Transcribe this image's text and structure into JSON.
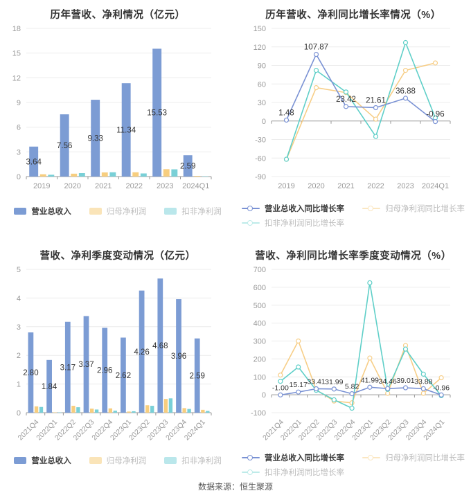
{
  "footer": {
    "source": "数据来源：恒生聚源"
  },
  "colors": {
    "blue": "#7C9CD4",
    "yellow": "#F7CE7F",
    "teal": "#6ACFCC",
    "axis_text": "#999999",
    "grid_line": "#ECECEC",
    "axis_line": "#999999",
    "data_label": "#333333",
    "title_text": "#333333"
  },
  "chart_data": [
    {
      "type": "bar",
      "title": "历年营收、净利情况（亿元）",
      "categories": [
        "2019",
        "2020",
        "2021",
        "2022",
        "2023",
        "2024Q1"
      ],
      "ylim": [
        0,
        18
      ],
      "yticks": [
        0,
        3,
        6,
        9,
        12,
        15,
        18
      ],
      "rotate_xlabels": false,
      "legend_position": "bottom",
      "grid": true,
      "series": [
        {
          "name": "营业总收入",
          "color": "#7C9CD4",
          "legend_color": "#7C9CD4",
          "labeled": true,
          "values": [
            3.64,
            7.56,
            9.33,
            11.34,
            15.53,
            2.59
          ]
        },
        {
          "name": "归母净利润",
          "color": "#F7CE7F",
          "legend_color": "#FAE4B8",
          "labeled": false,
          "values": [
            0.28,
            0.35,
            0.5,
            0.52,
            0.9,
            0.08
          ]
        },
        {
          "name": "扣非净利润",
          "color": "#79D0D7",
          "legend_color": "#BAE7EB",
          "labeled": false,
          "values": [
            0.22,
            0.42,
            0.52,
            0.38,
            0.88,
            0.04
          ]
        }
      ]
    },
    {
      "type": "line",
      "title": "历年营收、净利同比增长率情况（%）",
      "categories": [
        "2019",
        "2020",
        "2021",
        "2022",
        "2023",
        "2024Q1"
      ],
      "ylim": [
        -90,
        150
      ],
      "yticks": [
        -90,
        -60,
        -30,
        0,
        30,
        60,
        90,
        120,
        150
      ],
      "rotate_xlabels": false,
      "legend_position": "bottom",
      "grid": true,
      "series": [
        {
          "name": "营业总收入同比增长率",
          "color": "#7A92D4",
          "legend_color": "#7A92D4",
          "labeled": true,
          "values": [
            1.48,
            107.87,
            23.42,
            21.61,
            36.88,
            -0.96
          ]
        },
        {
          "name": "归母净利润同比增长率",
          "color": "#F7CE87",
          "legend_color": "#FBE7C2",
          "labeled": false,
          "values": [
            -62,
            54,
            46,
            3,
            82,
            94
          ]
        },
        {
          "name": "扣非净利润同比增长率",
          "color": "#5FCFC8",
          "legend_color": "#BEEBE9",
          "labeled": false,
          "values": [
            -62,
            82,
            47,
            -25,
            127,
            5
          ]
        }
      ]
    },
    {
      "type": "bar",
      "title": "营收、净利季度变动情况（亿元）",
      "categories": [
        "2021Q4",
        "2022Q1",
        "2022Q2",
        "2022Q3",
        "2022Q4",
        "2023Q1",
        "2023Q2",
        "2023Q3",
        "2023Q4",
        "2024Q1"
      ],
      "ylim": [
        0,
        5
      ],
      "yticks": [
        0,
        1,
        2,
        3,
        4,
        5
      ],
      "rotate_xlabels": true,
      "legend_position": "bottom",
      "grid": true,
      "series": [
        {
          "name": "营业总收入",
          "color": "#7C9CD4",
          "legend_color": "#7C9CD4",
          "labeled": true,
          "values": [
            2.8,
            1.84,
            3.17,
            3.37,
            2.96,
            2.62,
            4.26,
            4.68,
            3.96,
            2.59
          ]
        },
        {
          "name": "归母净利润",
          "color": "#F7CE7F",
          "legend_color": "#FAE4B8",
          "labeled": false,
          "values": [
            0.22,
            0.01,
            0.24,
            0.14,
            0.15,
            0.04,
            0.26,
            0.48,
            0.16,
            0.1
          ]
        },
        {
          "name": "扣非净利润",
          "color": "#79D0D7",
          "legend_color": "#BAE7EB",
          "labeled": false,
          "values": [
            0.2,
            0.01,
            0.19,
            0.11,
            0.07,
            0.05,
            0.24,
            0.5,
            0.13,
            0.06
          ]
        }
      ]
    },
    {
      "type": "line",
      "title": "营收、净利同比增长率季度变动情况（%）",
      "categories": [
        "2021Q4",
        "2022Q1",
        "2022Q2",
        "2022Q3",
        "2022Q4",
        "2023Q1",
        "2023Q2",
        "2023Q3",
        "2023Q4",
        "2024Q1"
      ],
      "ylim": [
        -100,
        700
      ],
      "yticks": [
        -100,
        0,
        100,
        200,
        300,
        400,
        500,
        600,
        700
      ],
      "rotate_xlabels": true,
      "legend_position": "bottom",
      "grid": true,
      "series": [
        {
          "name": "营业总收入同比增长率",
          "color": "#7A92D4",
          "legend_color": "#7A92D4",
          "labeled": true,
          "values": [
            -1.0,
            15.17,
            33.41,
            31.99,
            5.82,
            41.99,
            34.46,
            39.01,
            33.88,
            -0.96
          ]
        },
        {
          "name": "归母净利润同比增长率",
          "color": "#F7CE87",
          "legend_color": "#FBE7C2",
          "labeled": false,
          "values": [
            110,
            300,
            28,
            -35,
            -45,
            205,
            8,
            275,
            8,
            95
          ]
        },
        {
          "name": "扣非净利润同比增长率",
          "color": "#5FCFC8",
          "legend_color": "#BEEBE9",
          "labeled": false,
          "values": [
            75,
            155,
            25,
            -28,
            -75,
            625,
            30,
            255,
            115,
            -5
          ]
        }
      ]
    }
  ]
}
